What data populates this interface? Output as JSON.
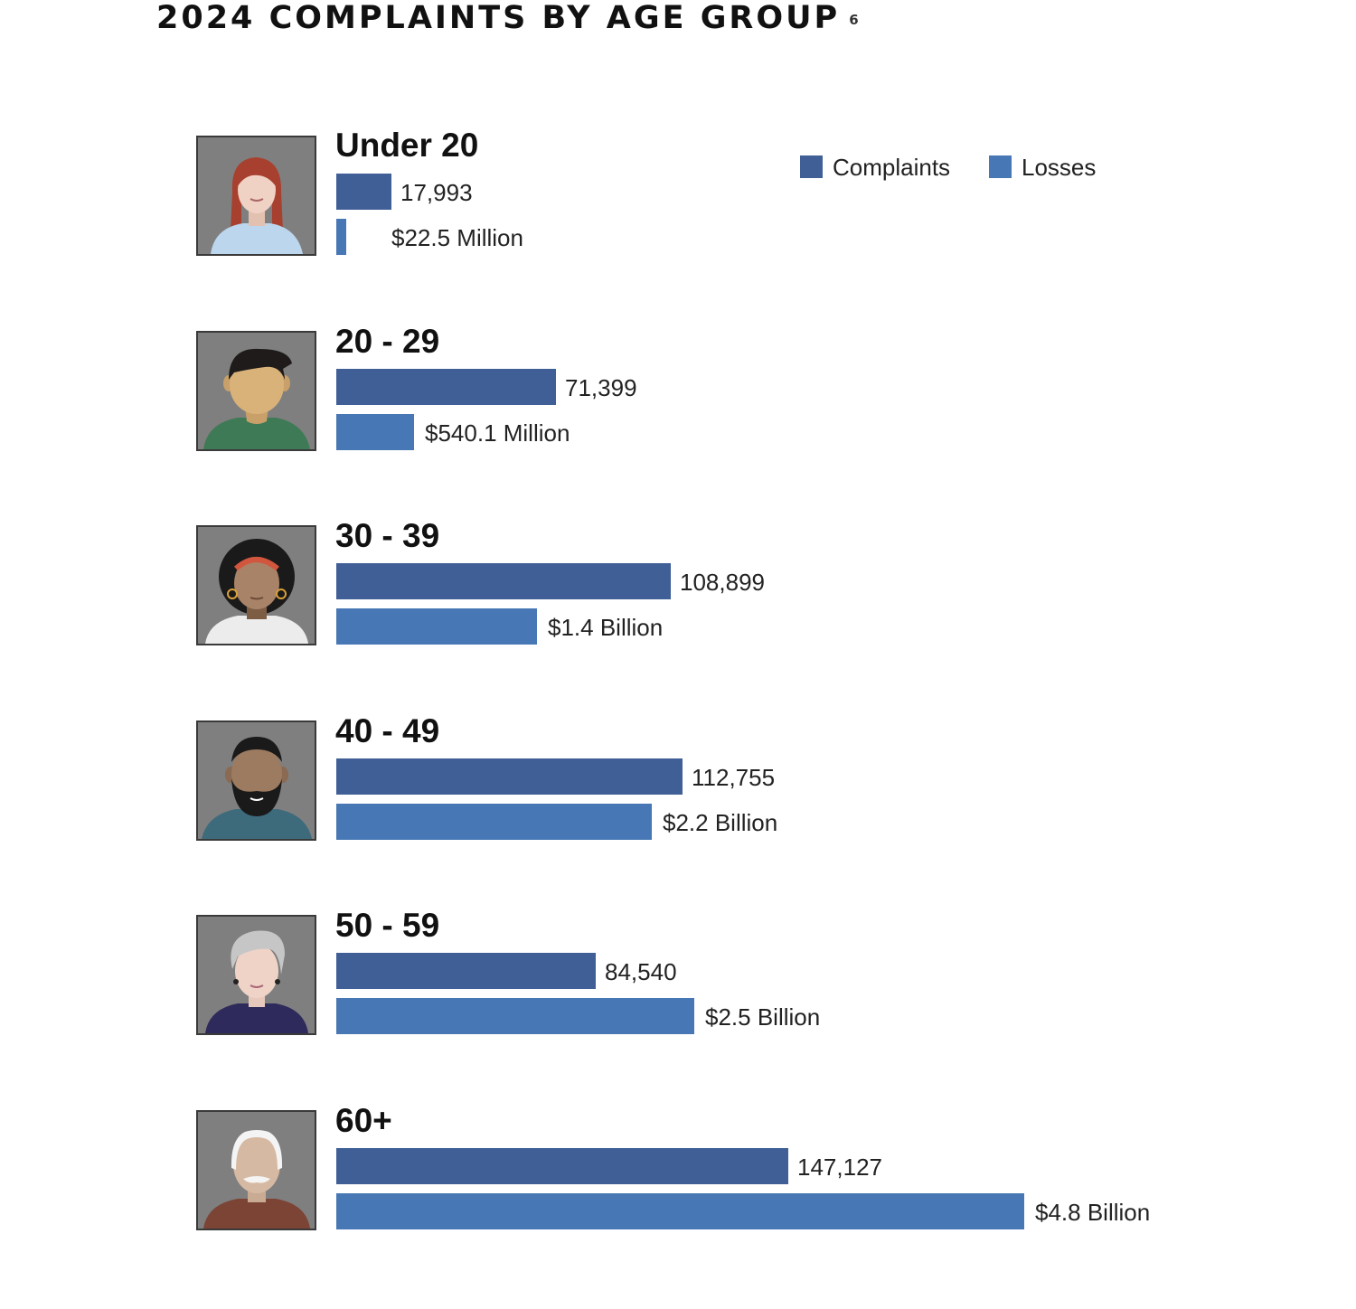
{
  "title": "2024 COMPLAINTS BY AGE GROUP",
  "footnote": "6",
  "legend": {
    "complaints": "Complaints",
    "losses": "Losses"
  },
  "colors": {
    "complaints": "#3f5f96",
    "losses": "#4777b4",
    "avatar_background": "#7f7f7f"
  },
  "chart_data": {
    "type": "bar",
    "orientation": "horizontal",
    "title": "2024 COMPLAINTS BY AGE GROUP",
    "categories": [
      "Under 20",
      "20 - 29",
      "30 - 39",
      "40 - 49",
      "50 - 59",
      "60+"
    ],
    "series": [
      {
        "name": "Complaints",
        "values": [
          17993,
          71399,
          108899,
          112755,
          84540,
          147127
        ],
        "labels": [
          "17,993",
          "71,399",
          "108,899",
          "112,755",
          "84,540",
          "147,127"
        ]
      },
      {
        "name": "Losses",
        "values": [
          22.5,
          540.1,
          1400,
          2200,
          2500,
          4800
        ],
        "unit": "million USD",
        "labels": [
          "$22.5 Million",
          "$540.1 Million",
          "$1.4 Billion",
          "$2.2 Billion",
          "$2.5 Billion",
          "$4.8 Billion"
        ]
      }
    ],
    "legend_position": "top-right",
    "grid": false,
    "xlabel": "",
    "ylabel": ""
  },
  "groups": [
    {
      "label": "Under 20",
      "complaints": "17,993",
      "losses": "$22.5 Million",
      "avatar": "young-woman-red-hair-icon"
    },
    {
      "label": "20 - 29",
      "complaints": "71,399",
      "losses": "$540.1 Million",
      "avatar": "young-man-dark-hair-icon"
    },
    {
      "label": "30 - 39",
      "complaints": "108,899",
      "losses": "$1.4 Billion",
      "avatar": "woman-curly-hair-headband-icon"
    },
    {
      "label": "40 - 49",
      "complaints": "112,755",
      "losses": "$2.2 Billion",
      "avatar": "bearded-man-icon"
    },
    {
      "label": "50 - 59",
      "complaints": "84,540",
      "losses": "$2.5 Billion",
      "avatar": "gray-haired-woman-icon"
    },
    {
      "label": "60+",
      "complaints": "147,127",
      "losses": "$4.8 Billion",
      "avatar": "elderly-man-white-hair-icon"
    }
  ]
}
